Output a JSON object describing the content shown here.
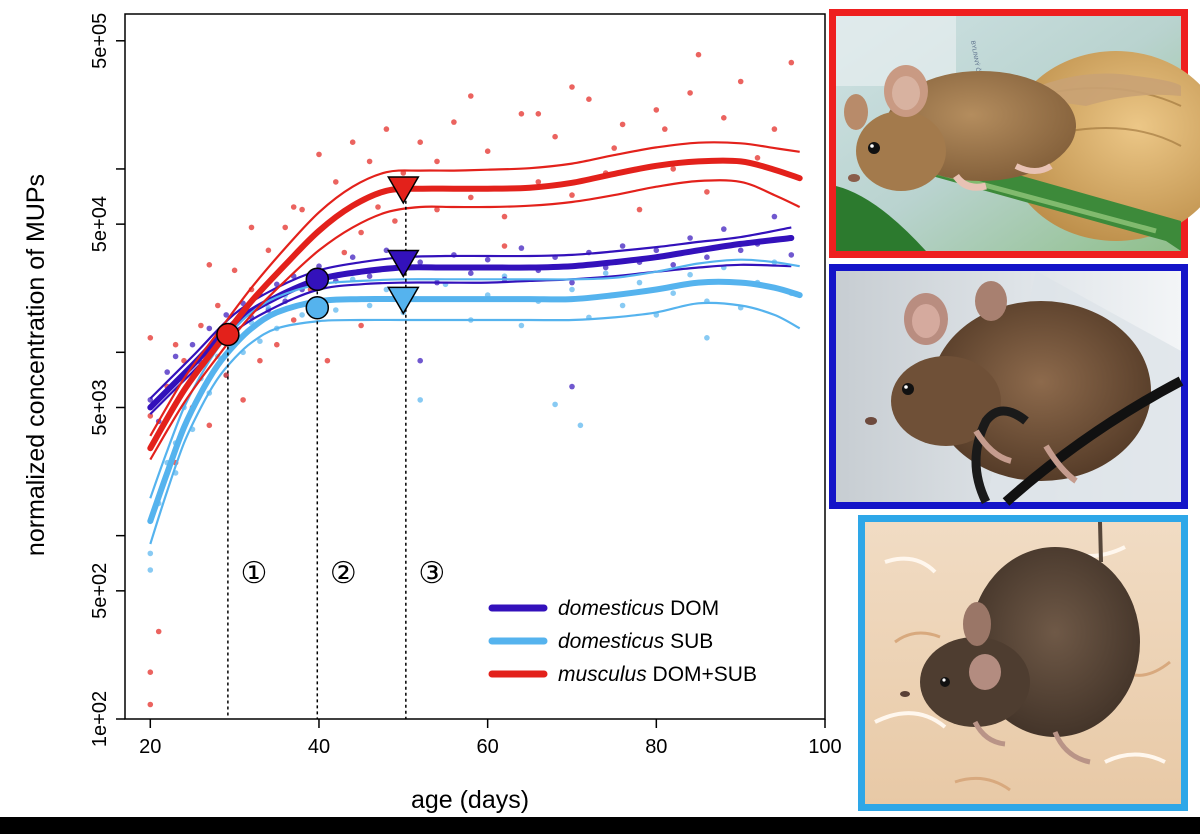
{
  "chart_data": {
    "type": "line",
    "xlabel": "age (days)",
    "ylabel": "normalized concentration of MUPs",
    "xlim": [
      17,
      100
    ],
    "ylim": [
      100,
      700000
    ],
    "ylog": true,
    "xticks": [
      20,
      40,
      60,
      80,
      100
    ],
    "yticks": [
      {
        "value": 100,
        "label": "1e+02"
      },
      {
        "value": 500,
        "label": "5e+02"
      },
      {
        "value": 5000,
        "label": "5e+03"
      },
      {
        "value": 50000,
        "label": "5e+04"
      },
      {
        "value": 500000,
        "label": "5e+05"
      }
    ],
    "yminor": [
      1000,
      10000,
      100000
    ],
    "legend": {
      "position": "bottom-right"
    },
    "series": [
      {
        "group": "domesticus",
        "tag": "DOM",
        "color": "#3311bb",
        "x": [
          20,
          25,
          30,
          35,
          40,
          45,
          50,
          55,
          60,
          65,
          70,
          75,
          80,
          85,
          90,
          96
        ],
        "fit": [
          5000,
          8500,
          14500,
          20000,
          25000,
          27500,
          29000,
          29000,
          29000,
          29000,
          29500,
          31000,
          33000,
          36000,
          39000,
          42000
        ],
        "lower": [
          4600,
          7800,
          13000,
          17800,
          22000,
          23500,
          24000,
          24000,
          24000,
          24500,
          25000,
          26000,
          27500,
          29000,
          30000,
          29500
        ],
        "upper": [
          5600,
          9500,
          16200,
          22500,
          28000,
          31000,
          33000,
          33500,
          33500,
          33500,
          34000,
          35500,
          37500,
          40000,
          42500,
          48000
        ],
        "marker": {
          "shape": "circle",
          "x": 39.8,
          "y": 25000
        },
        "plateau": {
          "shape": "triangle-down",
          "x": 50,
          "y": 31000
        },
        "points": [
          [
            20,
            5500
          ],
          [
            21,
            4200
          ],
          [
            22,
            7800
          ],
          [
            23,
            9500
          ],
          [
            24,
            6200
          ],
          [
            25,
            11000
          ],
          [
            26,
            8800
          ],
          [
            27,
            13500
          ],
          [
            28,
            12500
          ],
          [
            29,
            16000
          ],
          [
            30,
            14000
          ],
          [
            31,
            18500
          ],
          [
            32,
            15500
          ],
          [
            33,
            21000
          ],
          [
            34,
            17000
          ],
          [
            35,
            23500
          ],
          [
            36,
            19000
          ],
          [
            37,
            26000
          ],
          [
            38,
            22000
          ],
          [
            40,
            29500
          ],
          [
            42,
            24500
          ],
          [
            44,
            33000
          ],
          [
            46,
            26000
          ],
          [
            48,
            36000
          ],
          [
            50,
            27500
          ],
          [
            52,
            31000
          ],
          [
            54,
            24000
          ],
          [
            56,
            34000
          ],
          [
            58,
            27000
          ],
          [
            60,
            32000
          ],
          [
            62,
            25000
          ],
          [
            64,
            37000
          ],
          [
            66,
            28000
          ],
          [
            68,
            33000
          ],
          [
            70,
            24000
          ],
          [
            72,
            35000
          ],
          [
            74,
            29000
          ],
          [
            76,
            38000
          ],
          [
            78,
            31000
          ],
          [
            80,
            36000
          ],
          [
            82,
            30000
          ],
          [
            84,
            42000
          ],
          [
            86,
            33000
          ],
          [
            88,
            47000
          ],
          [
            90,
            36000
          ],
          [
            92,
            39000
          ],
          [
            94,
            55000
          ],
          [
            96,
            34000
          ],
          [
            52,
            9000
          ],
          [
            70,
            6500
          ]
        ]
      },
      {
        "group": "domesticus",
        "tag": "SUB",
        "color": "#55b3ee",
        "x": [
          20,
          22,
          24,
          26,
          28,
          30,
          32,
          35,
          40,
          45,
          50,
          55,
          60,
          65,
          70,
          75,
          80,
          85,
          90,
          94,
          97
        ],
        "fit": [
          1200,
          2200,
          3900,
          6000,
          8500,
          11000,
          13500,
          16500,
          19000,
          19500,
          19500,
          19500,
          19500,
          19500,
          19500,
          20500,
          22000,
          24000,
          24000,
          22500,
          20500
        ],
        "lower": [
          900,
          1750,
          3200,
          5000,
          7200,
          9300,
          11300,
          13500,
          14800,
          15000,
          15000,
          15000,
          15000,
          15000,
          15000,
          15500,
          16500,
          18500,
          18000,
          16000,
          13500
        ],
        "upper": [
          1600,
          2900,
          5000,
          7500,
          10500,
          13500,
          16500,
          20000,
          23500,
          24500,
          25000,
          25000,
          25000,
          25000,
          25000,
          25500,
          27500,
          30500,
          32000,
          31000,
          29500
        ],
        "marker": {
          "shape": "circle",
          "x": 39.8,
          "y": 17500
        },
        "plateau": {
          "shape": "triangle-down",
          "x": 50,
          "y": 19500
        },
        "points": [
          [
            20,
            800
          ],
          [
            20,
            650
          ],
          [
            21,
            1500
          ],
          [
            22,
            2500
          ],
          [
            23,
            3200
          ],
          [
            24,
            5000
          ],
          [
            25,
            3800
          ],
          [
            26,
            7200
          ],
          [
            27,
            6000
          ],
          [
            28,
            9500
          ],
          [
            29,
            7500
          ],
          [
            30,
            12500
          ],
          [
            31,
            10000
          ],
          [
            32,
            14500
          ],
          [
            33,
            11500
          ],
          [
            34,
            17500
          ],
          [
            35,
            13500
          ],
          [
            36,
            20500
          ],
          [
            38,
            16000
          ],
          [
            40,
            22500
          ],
          [
            42,
            17000
          ],
          [
            44,
            25000
          ],
          [
            46,
            18000
          ],
          [
            48,
            22000
          ],
          [
            50,
            16500
          ],
          [
            52,
            5500
          ],
          [
            55,
            23500
          ],
          [
            58,
            15000
          ],
          [
            60,
            20500
          ],
          [
            62,
            26000
          ],
          [
            64,
            14000
          ],
          [
            66,
            19000
          ],
          [
            68,
            5200
          ],
          [
            70,
            22000
          ],
          [
            72,
            15500
          ],
          [
            74,
            27000
          ],
          [
            76,
            18000
          ],
          [
            78,
            24000
          ],
          [
            80,
            16000
          ],
          [
            82,
            21000
          ],
          [
            84,
            26500
          ],
          [
            86,
            19000
          ],
          [
            88,
            29000
          ],
          [
            90,
            17500
          ],
          [
            92,
            24000
          ],
          [
            94,
            31000
          ],
          [
            96,
            21000
          ],
          [
            71,
            4000
          ],
          [
            86,
            12000
          ],
          [
            23,
            2200
          ]
        ]
      },
      {
        "group": "musculus",
        "tag": "DOM+SUB",
        "color": "#e3211b",
        "x": [
          20,
          24,
          28,
          32,
          36,
          40,
          44,
          48,
          52,
          56,
          60,
          65,
          70,
          75,
          80,
          85,
          90,
          94,
          97
        ],
        "fit": [
          3000,
          6200,
          11000,
          19000,
          30000,
          46000,
          63000,
          76000,
          78000,
          78000,
          78000,
          79000,
          84000,
          94000,
          104000,
          110000,
          110000,
          99000,
          89000
        ],
        "lower": [
          2600,
          5300,
          9500,
          16000,
          24500,
          36000,
          48000,
          58000,
          62000,
          62000,
          62000,
          63000,
          66000,
          72000,
          80000,
          86000,
          85000,
          72000,
          62000
        ],
        "upper": [
          3500,
          7200,
          12800,
          22500,
          37000,
          58000,
          80000,
          96000,
          98000,
          98000,
          99000,
          101000,
          107000,
          119000,
          131000,
          139000,
          138000,
          130000,
          124000
        ],
        "marker": {
          "shape": "circle",
          "x": 29.2,
          "y": 12500
        },
        "plateau": {
          "shape": "triangle-down",
          "x": 50,
          "y": 78000
        },
        "points": [
          [
            20,
            12000
          ],
          [
            20,
            4500
          ],
          [
            20,
            180
          ],
          [
            20,
            120
          ],
          [
            21,
            300
          ],
          [
            22,
            6500
          ],
          [
            23,
            2500
          ],
          [
            24,
            9000
          ],
          [
            25,
            5000
          ],
          [
            26,
            14000
          ],
          [
            27,
            4000
          ],
          [
            28,
            18000
          ],
          [
            29,
            7500
          ],
          [
            30,
            28000
          ],
          [
            31,
            5500
          ],
          [
            32,
            22000
          ],
          [
            33,
            9000
          ],
          [
            34,
            36000
          ],
          [
            35,
            11000
          ],
          [
            36,
            48000
          ],
          [
            37,
            15000
          ],
          [
            38,
            60000
          ],
          [
            39,
            22000
          ],
          [
            40,
            120000
          ],
          [
            41,
            9000
          ],
          [
            42,
            85000
          ],
          [
            43,
            35000
          ],
          [
            44,
            140000
          ],
          [
            45,
            45000
          ],
          [
            46,
            110000
          ],
          [
            47,
            62000
          ],
          [
            48,
            165000
          ],
          [
            49,
            52000
          ],
          [
            50,
            95000
          ],
          [
            52,
            140000
          ],
          [
            54,
            60000
          ],
          [
            56,
            180000
          ],
          [
            58,
            70000
          ],
          [
            60,
            125000
          ],
          [
            62,
            55000
          ],
          [
            64,
            200000
          ],
          [
            66,
            85000
          ],
          [
            68,
            150000
          ],
          [
            70,
            72000
          ],
          [
            72,
            240000
          ],
          [
            74,
            95000
          ],
          [
            76,
            175000
          ],
          [
            78,
            60000
          ],
          [
            80,
            210000
          ],
          [
            82,
            100000
          ],
          [
            84,
            260000
          ],
          [
            86,
            75000
          ],
          [
            88,
            190000
          ],
          [
            90,
            300000
          ],
          [
            92,
            115000
          ],
          [
            94,
            165000
          ],
          [
            96,
            380000
          ],
          [
            58,
            250000
          ],
          [
            75,
            130000
          ],
          [
            32,
            48000
          ],
          [
            45,
            14000
          ],
          [
            62,
            38000
          ],
          [
            85,
            420000
          ],
          [
            70,
            280000
          ],
          [
            54,
            110000
          ],
          [
            66,
            200000
          ],
          [
            81,
            165000
          ],
          [
            37,
            62000
          ],
          [
            27,
            30000
          ],
          [
            23,
            11000
          ]
        ]
      }
    ],
    "age_lines": [
      {
        "x": 29.2,
        "label": "①"
      },
      {
        "x": 39.8,
        "label": "②"
      },
      {
        "x": 50.3,
        "label": "③"
      }
    ]
  },
  "photos": [
    {
      "caption": "",
      "frame_color": "#ee1f1f",
      "sign_text": "BYLINNÝ ČAJ MÁTA (porcovaný v sáčku) Máta peprná"
    },
    {
      "caption": "",
      "frame_color": "#1414c8"
    },
    {
      "caption": "",
      "frame_color": "#2ea7e8"
    }
  ]
}
